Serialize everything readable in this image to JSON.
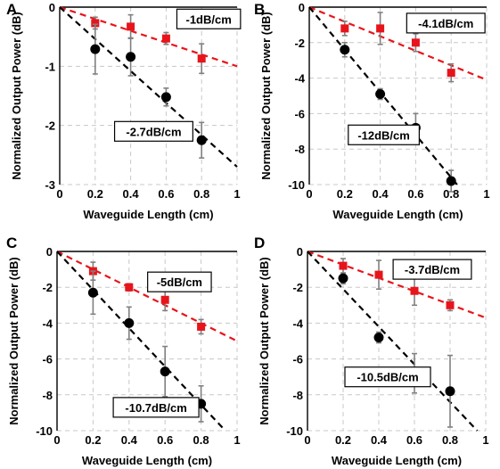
{
  "chart_data": [
    {
      "panel": "A",
      "type": "scatter",
      "xlabel": "Waveguide Length (cm)",
      "ylabel": "Normalized Output Power (dB)",
      "xlim": [
        0,
        1
      ],
      "ylim": [
        -3,
        0
      ],
      "xticks": [
        0,
        0.2,
        0.4,
        0.6,
        0.8,
        1
      ],
      "yticks": [
        0,
        -1,
        -2,
        -3
      ],
      "grid": true,
      "series": [
        {
          "marker": "square",
          "color": "#e8141b",
          "x": [
            0.2,
            0.4,
            0.6,
            0.8
          ],
          "y": [
            -0.27,
            -0.33,
            -0.53,
            -0.87
          ],
          "err": [
            0.1,
            0.2,
            0.1,
            0.25
          ]
        },
        {
          "marker": "circle",
          "color": "#000000",
          "x": [
            0.2,
            0.4,
            0.6,
            0.8
          ],
          "y": [
            -0.71,
            -0.84,
            -1.52,
            -2.25
          ],
          "err": [
            0.42,
            0.32,
            0.15,
            0.3
          ]
        }
      ],
      "fits": [
        {
          "color": "#e8141b",
          "slope": -1,
          "label": "-1dB/cm",
          "label_at": [
            0.84,
            -0.2
          ]
        },
        {
          "color": "#000000",
          "slope": -2.7,
          "label": "-2.7dB/cm",
          "label_at": [
            0.53,
            -2.1
          ]
        }
      ]
    },
    {
      "panel": "B",
      "type": "scatter",
      "xlabel": "Waveguide Length (cm)",
      "ylabel": "Normalized Output Power (dB)",
      "xlim": [
        0,
        1
      ],
      "ylim": [
        -10,
        0
      ],
      "xticks": [
        0,
        0.2,
        0.4,
        0.6,
        0.8,
        1
      ],
      "yticks": [
        0,
        -2,
        -4,
        -6,
        -8,
        -10
      ],
      "grid": true,
      "series": [
        {
          "marker": "square",
          "color": "#e8141b",
          "x": [
            0.2,
            0.4,
            0.6,
            0.8
          ],
          "y": [
            -1.2,
            -1.2,
            -2.0,
            -3.7
          ],
          "err": [
            0.4,
            0.9,
            0.5,
            0.5
          ]
        },
        {
          "marker": "circle",
          "color": "#000000",
          "x": [
            0.2,
            0.4,
            0.6,
            0.8
          ],
          "y": [
            -2.4,
            -4.9,
            -6.8,
            -9.8
          ],
          "err": [
            0.4,
            0.3,
            0.8,
            0.6
          ]
        }
      ],
      "fits": [
        {
          "color": "#e8141b",
          "slope": -4.1,
          "label": "-4.1dB/cm",
          "label_at": [
            0.77,
            -0.9
          ]
        },
        {
          "color": "#000000",
          "slope": -12,
          "label": "-12dB/cm",
          "label_at": [
            0.42,
            -7.2
          ]
        }
      ]
    },
    {
      "panel": "C",
      "type": "scatter",
      "xlabel": "Waveguide Length (cm)",
      "ylabel": "Normalized Output Power (dB)",
      "xlim": [
        0,
        1
      ],
      "ylim": [
        -10,
        0
      ],
      "xticks": [
        0,
        0.2,
        0.4,
        0.6,
        0.8,
        1
      ],
      "yticks": [
        0,
        -2,
        -4,
        -6,
        -8,
        -10
      ],
      "grid": true,
      "series": [
        {
          "marker": "square",
          "color": "#e8141b",
          "x": [
            0.2,
            0.4,
            0.6,
            0.8
          ],
          "y": [
            -1.1,
            -2.0,
            -2.7,
            -4.2
          ],
          "err": [
            0.5,
            0.2,
            0.6,
            0.4
          ]
        },
        {
          "marker": "circle",
          "color": "#000000",
          "x": [
            0.2,
            0.4,
            0.6,
            0.8
          ],
          "y": [
            -2.3,
            -4.0,
            -6.7,
            -8.5
          ],
          "err": [
            1.2,
            0.9,
            1.4,
            1.0
          ]
        }
      ],
      "fits": [
        {
          "color": "#e8141b",
          "slope": -5,
          "label": "-5dB/cm",
          "label_at": [
            0.68,
            -1.7
          ]
        },
        {
          "color": "#000000",
          "slope": -10.7,
          "label": "-10.7dB/cm",
          "label_at": [
            0.55,
            -8.7
          ]
        }
      ]
    },
    {
      "panel": "D",
      "type": "scatter",
      "xlabel": "Waveguide Length (cm)",
      "ylabel": "Normalized Output Power (dB)",
      "xlim": [
        0,
        1
      ],
      "ylim": [
        -10,
        0
      ],
      "xticks": [
        0,
        0.2,
        0.4,
        0.6,
        0.8,
        1
      ],
      "yticks": [
        0,
        -2,
        -4,
        -6,
        -8,
        -10
      ],
      "grid": true,
      "series": [
        {
          "marker": "square",
          "color": "#e8141b",
          "x": [
            0.2,
            0.4,
            0.6,
            0.8
          ],
          "y": [
            -0.8,
            -1.3,
            -2.2,
            -3.0
          ],
          "err": [
            0.4,
            0.8,
            0.8,
            0.3
          ]
        },
        {
          "marker": "circle",
          "color": "#000000",
          "x": [
            0.2,
            0.4,
            0.6,
            0.8
          ],
          "y": [
            -1.5,
            -4.8,
            -6.8,
            -7.8
          ],
          "err": [
            0.3,
            0.3,
            1.1,
            2.0
          ]
        }
      ],
      "fits": [
        {
          "color": "#e8141b",
          "slope": -3.7,
          "label": "-3.7dB/cm",
          "label_at": [
            0.7,
            -1.0
          ]
        },
        {
          "color": "#000000",
          "slope": -10.5,
          "label": "-10.5dB/cm",
          "label_at": [
            0.45,
            -7.0
          ]
        }
      ]
    }
  ]
}
